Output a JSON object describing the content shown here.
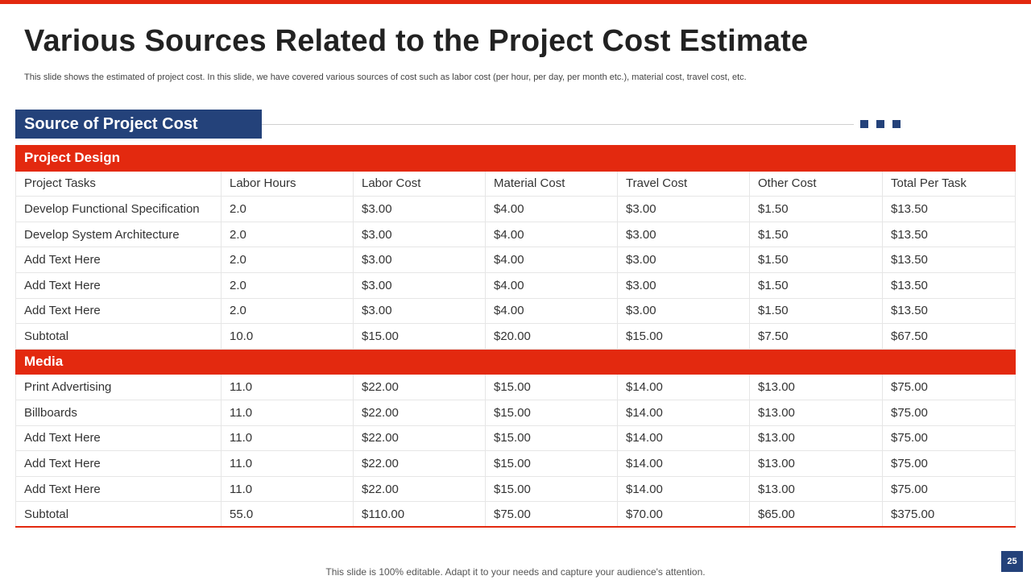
{
  "slide": {
    "title": "Various Sources Related to the Project Cost Estimate",
    "subtitle": "This slide shows the estimated of project cost. In this slide, we have covered various sources of cost such as labor cost (per hour, per day, per month etc.), material cost, travel cost, etc.",
    "section_title": "Source of Project Cost",
    "footer": "This slide is 100% editable. Adapt it to your needs and capture your audience's attention.",
    "page_number": "25"
  },
  "colors": {
    "accent_red": "#e3290f",
    "navy": "#24427a"
  },
  "table": {
    "groups": [
      {
        "name": "Project Design",
        "rows": [
          [
            "Project Tasks",
            "Labor Hours",
            "Labor Cost",
            "Material Cost",
            "Travel Cost",
            "Other Cost",
            "Total Per Task"
          ],
          [
            "Develop Functional Specification",
            "2.0",
            "$3.00",
            "$4.00",
            "$3.00",
            "$1.50",
            "$13.50"
          ],
          [
            "Develop System Architecture",
            "2.0",
            "$3.00",
            "$4.00",
            "$3.00",
            "$1.50",
            "$13.50"
          ],
          [
            "Add Text Here",
            "2.0",
            "$3.00",
            "$4.00",
            "$3.00",
            "$1.50",
            "$13.50"
          ],
          [
            "Add Text Here",
            "2.0",
            "$3.00",
            "$4.00",
            "$3.00",
            "$1.50",
            "$13.50"
          ],
          [
            "Add Text Here",
            "2.0",
            "$3.00",
            "$4.00",
            "$3.00",
            "$1.50",
            "$13.50"
          ],
          [
            "Subtotal",
            "10.0",
            "$15.00",
            "$20.00",
            "$15.00",
            "$7.50",
            "$67.50"
          ]
        ]
      },
      {
        "name": "Media",
        "rows": [
          [
            "Print Advertising",
            "11.0",
            "$22.00",
            "$15.00",
            "$14.00",
            "$13.00",
            "$75.00"
          ],
          [
            "Billboards",
            "11.0",
            "$22.00",
            "$15.00",
            "$14.00",
            "$13.00",
            "$75.00"
          ],
          [
            "Add Text Here",
            "11.0",
            "$22.00",
            "$15.00",
            "$14.00",
            "$13.00",
            "$75.00"
          ],
          [
            "Add Text Here",
            "11.0",
            "$22.00",
            "$15.00",
            "$14.00",
            "$13.00",
            "$75.00"
          ],
          [
            "Add Text Here",
            "11.0",
            "$22.00",
            "$15.00",
            "$14.00",
            "$13.00",
            "$75.00"
          ],
          [
            "Subtotal",
            "55.0",
            "$110.00",
            "$75.00",
            "$70.00",
            "$65.00",
            "$375.00"
          ]
        ]
      }
    ]
  }
}
